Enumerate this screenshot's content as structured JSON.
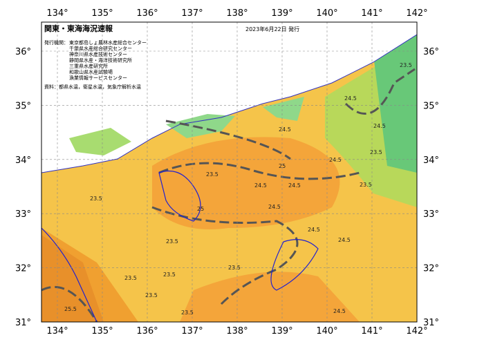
{
  "header": {
    "title": "関東・東海海況速報",
    "date": "2023年6月22日 発行",
    "issuer_label": "発行機関：",
    "issuers": [
      "東京都島しょ農林水産総合センター",
      "千葉県水産総合研究センター",
      "神奈川県水産技術センター",
      "静岡県水産・海洋技術研究所",
      "三重県水産研究所",
      "和歌山県水産試験場",
      "漁業情報サービスセンター"
    ],
    "source": "資料：都県水温，衛星水温，気象庁解析水温"
  },
  "map": {
    "lon_labels": [
      "134°",
      "135°",
      "136°",
      "137°",
      "138°",
      "139°",
      "140°",
      "141°",
      "142°"
    ],
    "lat_labels": [
      "36°",
      "35°",
      "34°",
      "33°",
      "32°",
      "31°"
    ],
    "contour_labels": [
      "23.5",
      "24.5",
      "24.5",
      "24.5",
      "24.5",
      "23.5",
      "24.5",
      "25",
      "23.5",
      "23.5",
      "23.5",
      "24.5",
      "24.5",
      "25.5",
      "23.5",
      "24.5",
      "23.5",
      "23.5",
      "23.5",
      "24.5",
      "23.5",
      "25",
      "23.5",
      "24.5"
    ]
  }
}
